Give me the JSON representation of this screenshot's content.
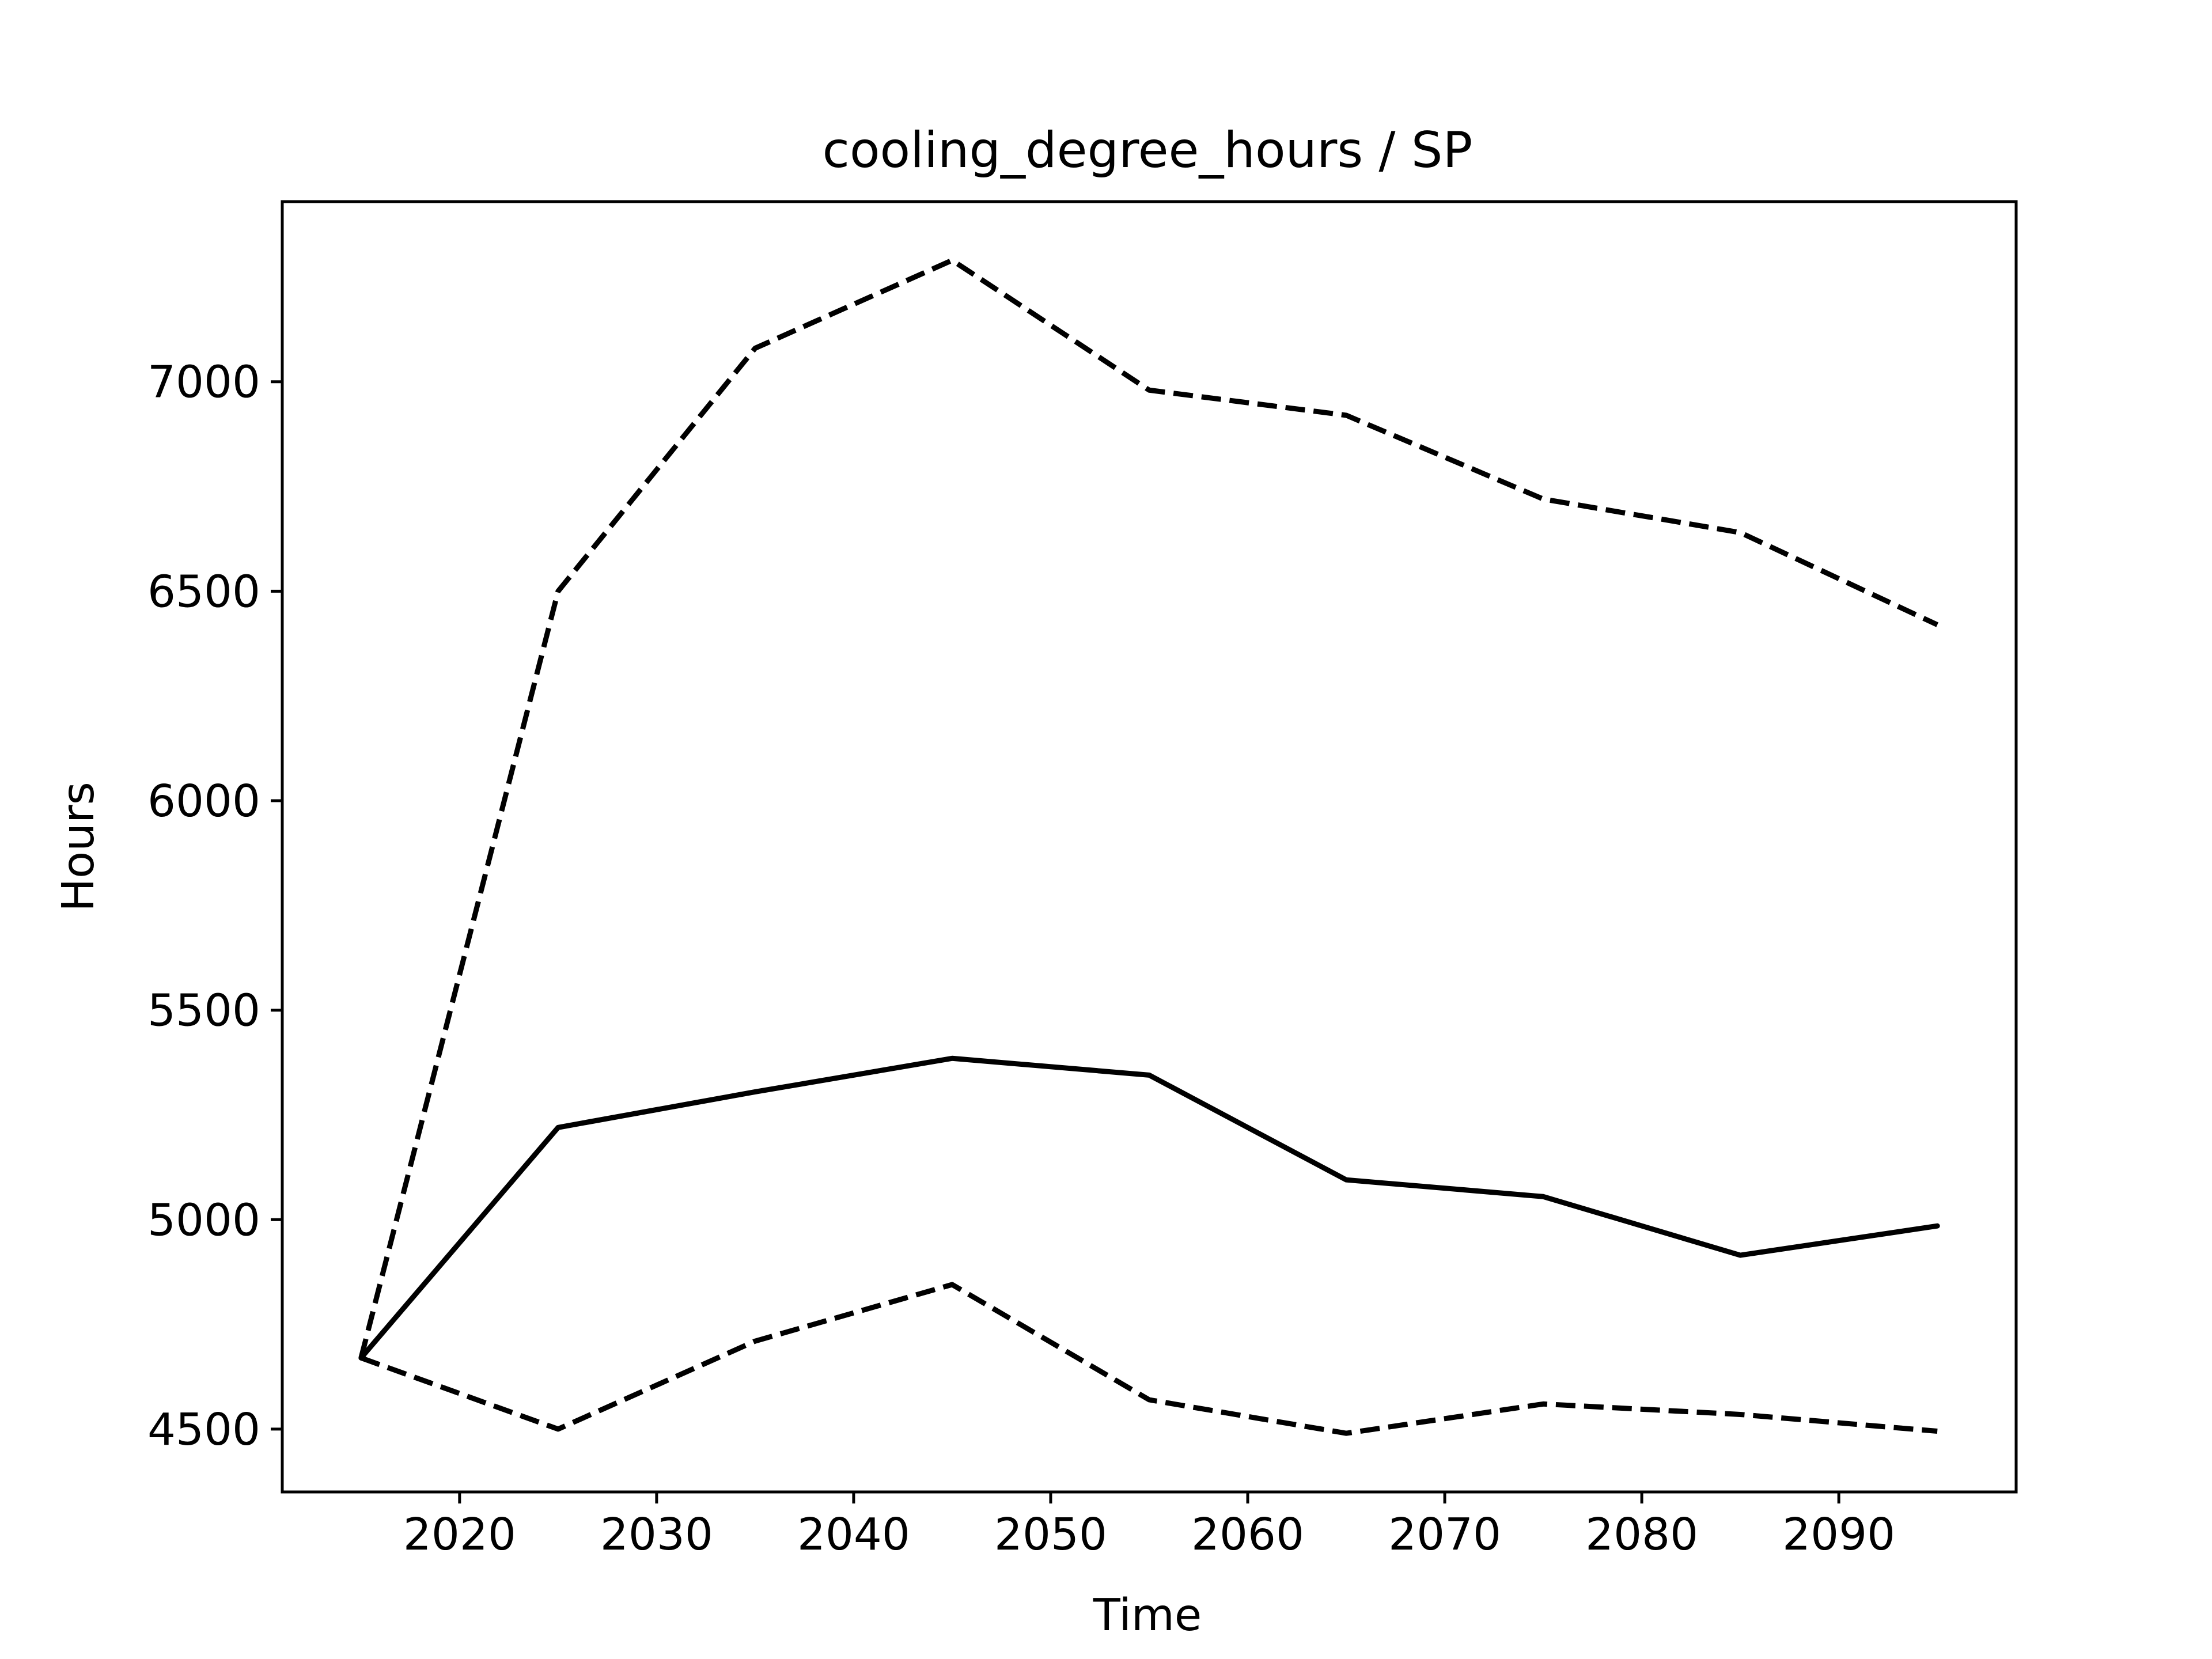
{
  "chart_data": {
    "type": "line",
    "title": "cooling_degree_hours / SP",
    "xlabel": "Time",
    "ylabel": "Hours",
    "xlim": [
      2011,
      2099
    ],
    "ylim": [
      4350,
      7430
    ],
    "xticks": [
      2020,
      2030,
      2040,
      2050,
      2060,
      2070,
      2080,
      2090
    ],
    "yticks": [
      4500,
      5000,
      5500,
      6000,
      6500,
      7000
    ],
    "grid": false,
    "legend": "none",
    "x": [
      2015,
      2025,
      2035,
      2045,
      2055,
      2065,
      2075,
      2085,
      2095
    ],
    "series": [
      {
        "style": "solid",
        "color": "#000000",
        "values": [
          4670,
          5220,
          5305,
          5385,
          5345,
          5095,
          5055,
          4915,
          4985
        ]
      },
      {
        "style": "dashed",
        "color": "#000000",
        "values": [
          4670,
          6500,
          7080,
          7290,
          6980,
          6920,
          6720,
          6640,
          6420
        ]
      },
      {
        "style": "dashed",
        "color": "#000000",
        "values": [
          4670,
          4500,
          4710,
          4845,
          4570,
          4490,
          4560,
          4535,
          4495
        ]
      }
    ]
  }
}
